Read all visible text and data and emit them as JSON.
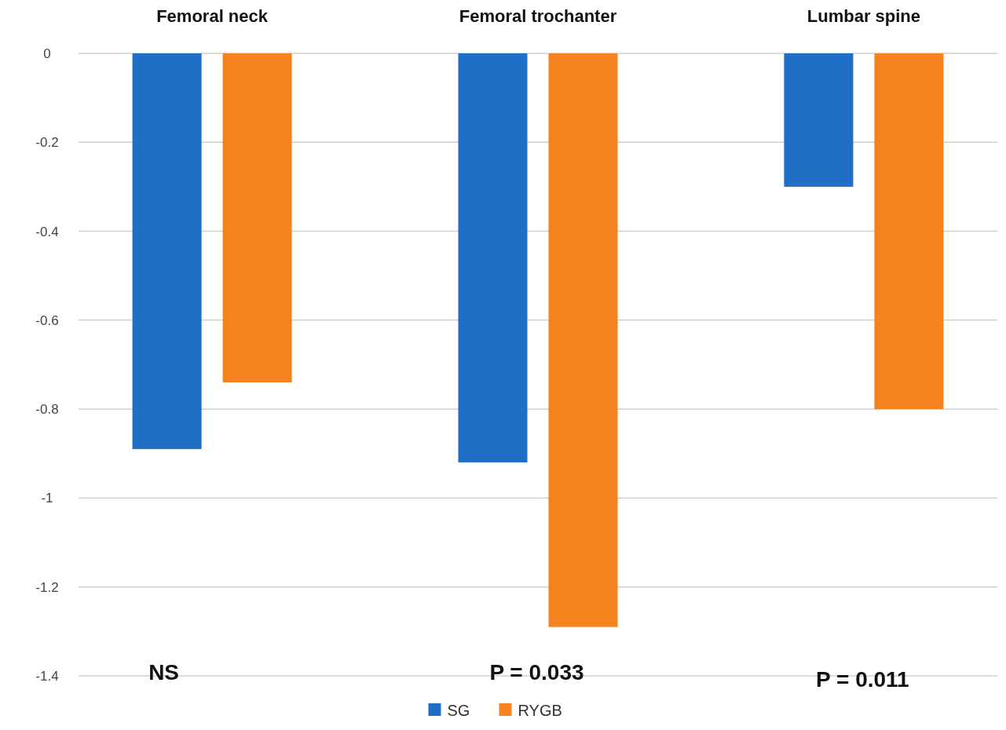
{
  "chart_data": {
    "type": "bar",
    "categories": [
      "Femoral neck",
      "Femoral trochanter",
      "Lumbar spine"
    ],
    "series": [
      {
        "name": "SG",
        "color": "#1f6fc6",
        "values": [
          -0.89,
          -0.92,
          -0.3
        ]
      },
      {
        "name": "RYGB",
        "color": "#f5821f",
        "values": [
          -0.74,
          -1.29,
          -0.8
        ]
      }
    ],
    "ylim": [
      -1.4,
      0
    ],
    "yticks": [
      0,
      -0.2,
      -0.4,
      -0.6,
      -0.8,
      -1,
      -1.2,
      -1.4
    ],
    "grid": "y",
    "legend": "bottom",
    "annotations": [
      "NS",
      "P = 0.033",
      "P = 0.011"
    ]
  }
}
